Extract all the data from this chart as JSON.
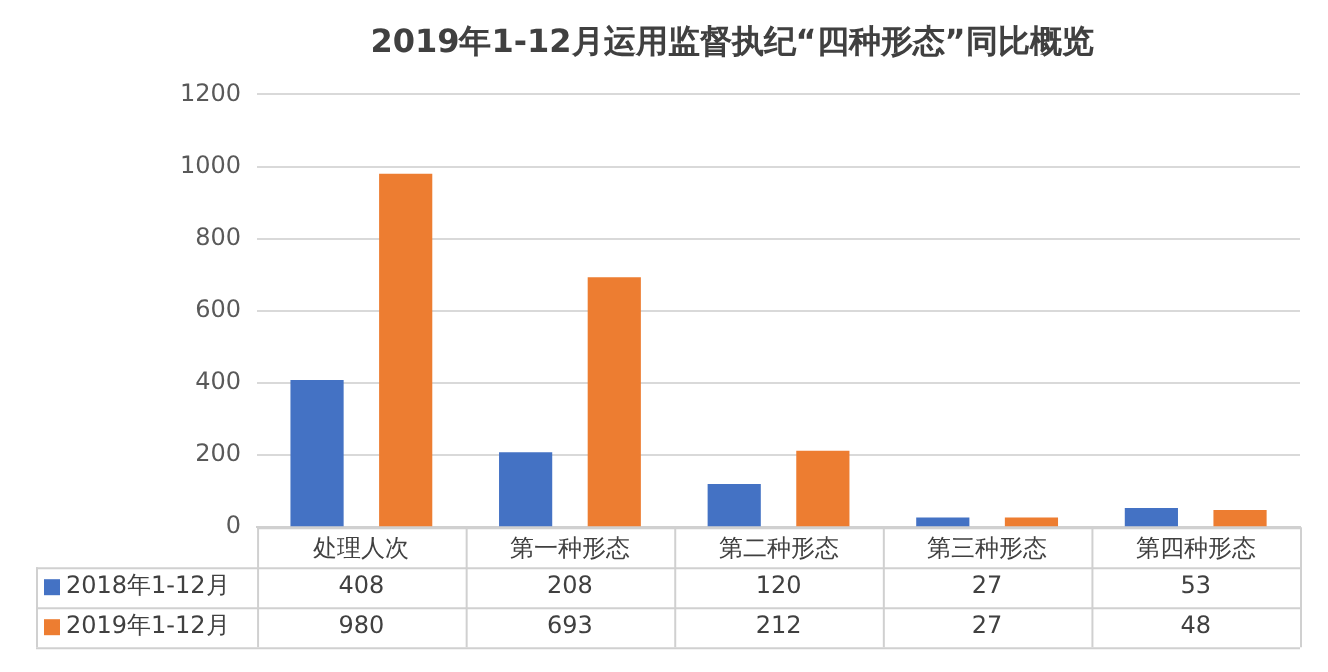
{
  "chart_data": {
    "type": "bar",
    "title": "2019年1-12月运用监督执纪“四种形态”同比概览",
    "categories": [
      "处理人次",
      "第一种形态",
      "第二种形态",
      "第三种形态",
      "第四种形态"
    ],
    "series": [
      {
        "name": "2018年1-12月",
        "color": "#4472c4",
        "values": [
          408,
          208,
          120,
          27,
          53
        ]
      },
      {
        "name": "2019年1-12月",
        "color": "#ed7d31",
        "values": [
          980,
          693,
          212,
          27,
          48
        ]
      }
    ],
    "ylim": [
      0,
      1200
    ],
    "yticks": [
      0,
      200,
      400,
      600,
      800,
      1000,
      1200
    ],
    "grid": "y",
    "legend": "bottom",
    "data_labels": true
  }
}
